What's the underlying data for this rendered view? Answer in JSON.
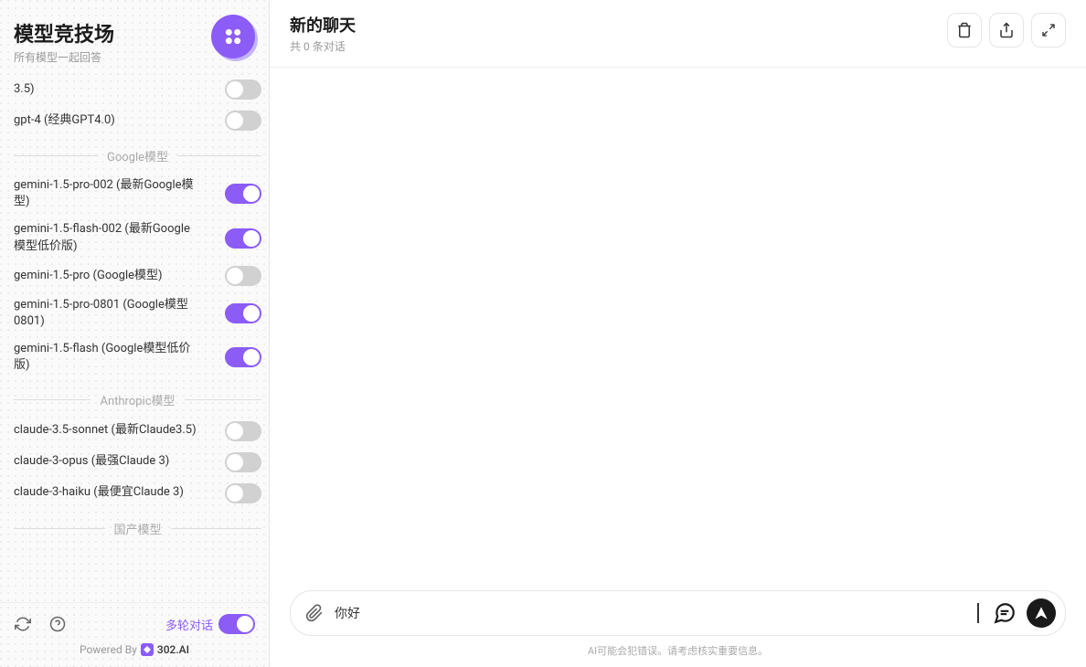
{
  "colors": {
    "accent": "#8b5cf6",
    "accent_light": "#c4b5fd",
    "toggle_off": "#d1d1d1",
    "border": "#e5e5e5",
    "text_primary": "#1a1a1a",
    "text_secondary": "#999",
    "background": "#fafafa"
  },
  "sidebar": {
    "title": "模型竞技场",
    "subtitle": "所有模型一起回答",
    "partial_models": [
      {
        "label": "3.5)",
        "enabled": false
      },
      {
        "label": "gpt-4 (经典GPT4.0)",
        "enabled": false
      }
    ],
    "sections": [
      {
        "name": "Google模型",
        "models": [
          {
            "label": "gemini-1.5-pro-002 (最新Google模型)",
            "enabled": true
          },
          {
            "label": "gemini-1.5-flash-002 (最新Google模型低价版)",
            "enabled": true
          },
          {
            "label": "gemini-1.5-pro (Google模型)",
            "enabled": false
          },
          {
            "label": "gemini-1.5-pro-0801 (Google模型0801)",
            "enabled": true
          },
          {
            "label": "gemini-1.5-flash (Google模型低价版)",
            "enabled": true
          }
        ]
      },
      {
        "name": "Anthropic模型",
        "models": [
          {
            "label": "claude-3.5-sonnet (最新Claude3.5)",
            "enabled": false
          },
          {
            "label": "claude-3-opus (最强Claude 3)",
            "enabled": false
          },
          {
            "label": "claude-3-haiku (最便宜Claude 3)",
            "enabled": false
          }
        ]
      },
      {
        "name": "国产模型",
        "models": []
      }
    ],
    "multi_turn_label": "多轮对话",
    "multi_turn_enabled": true,
    "powered_by_prefix": "Powered By",
    "powered_by_brand": "302.AI"
  },
  "main": {
    "title": "新的聊天",
    "subtitle_prefix": "共",
    "conversation_count": 0,
    "subtitle_suffix": "条对话",
    "input_value": "你好",
    "disclaimer": "AI可能会犯错误。请考虑核实重要信息。"
  }
}
